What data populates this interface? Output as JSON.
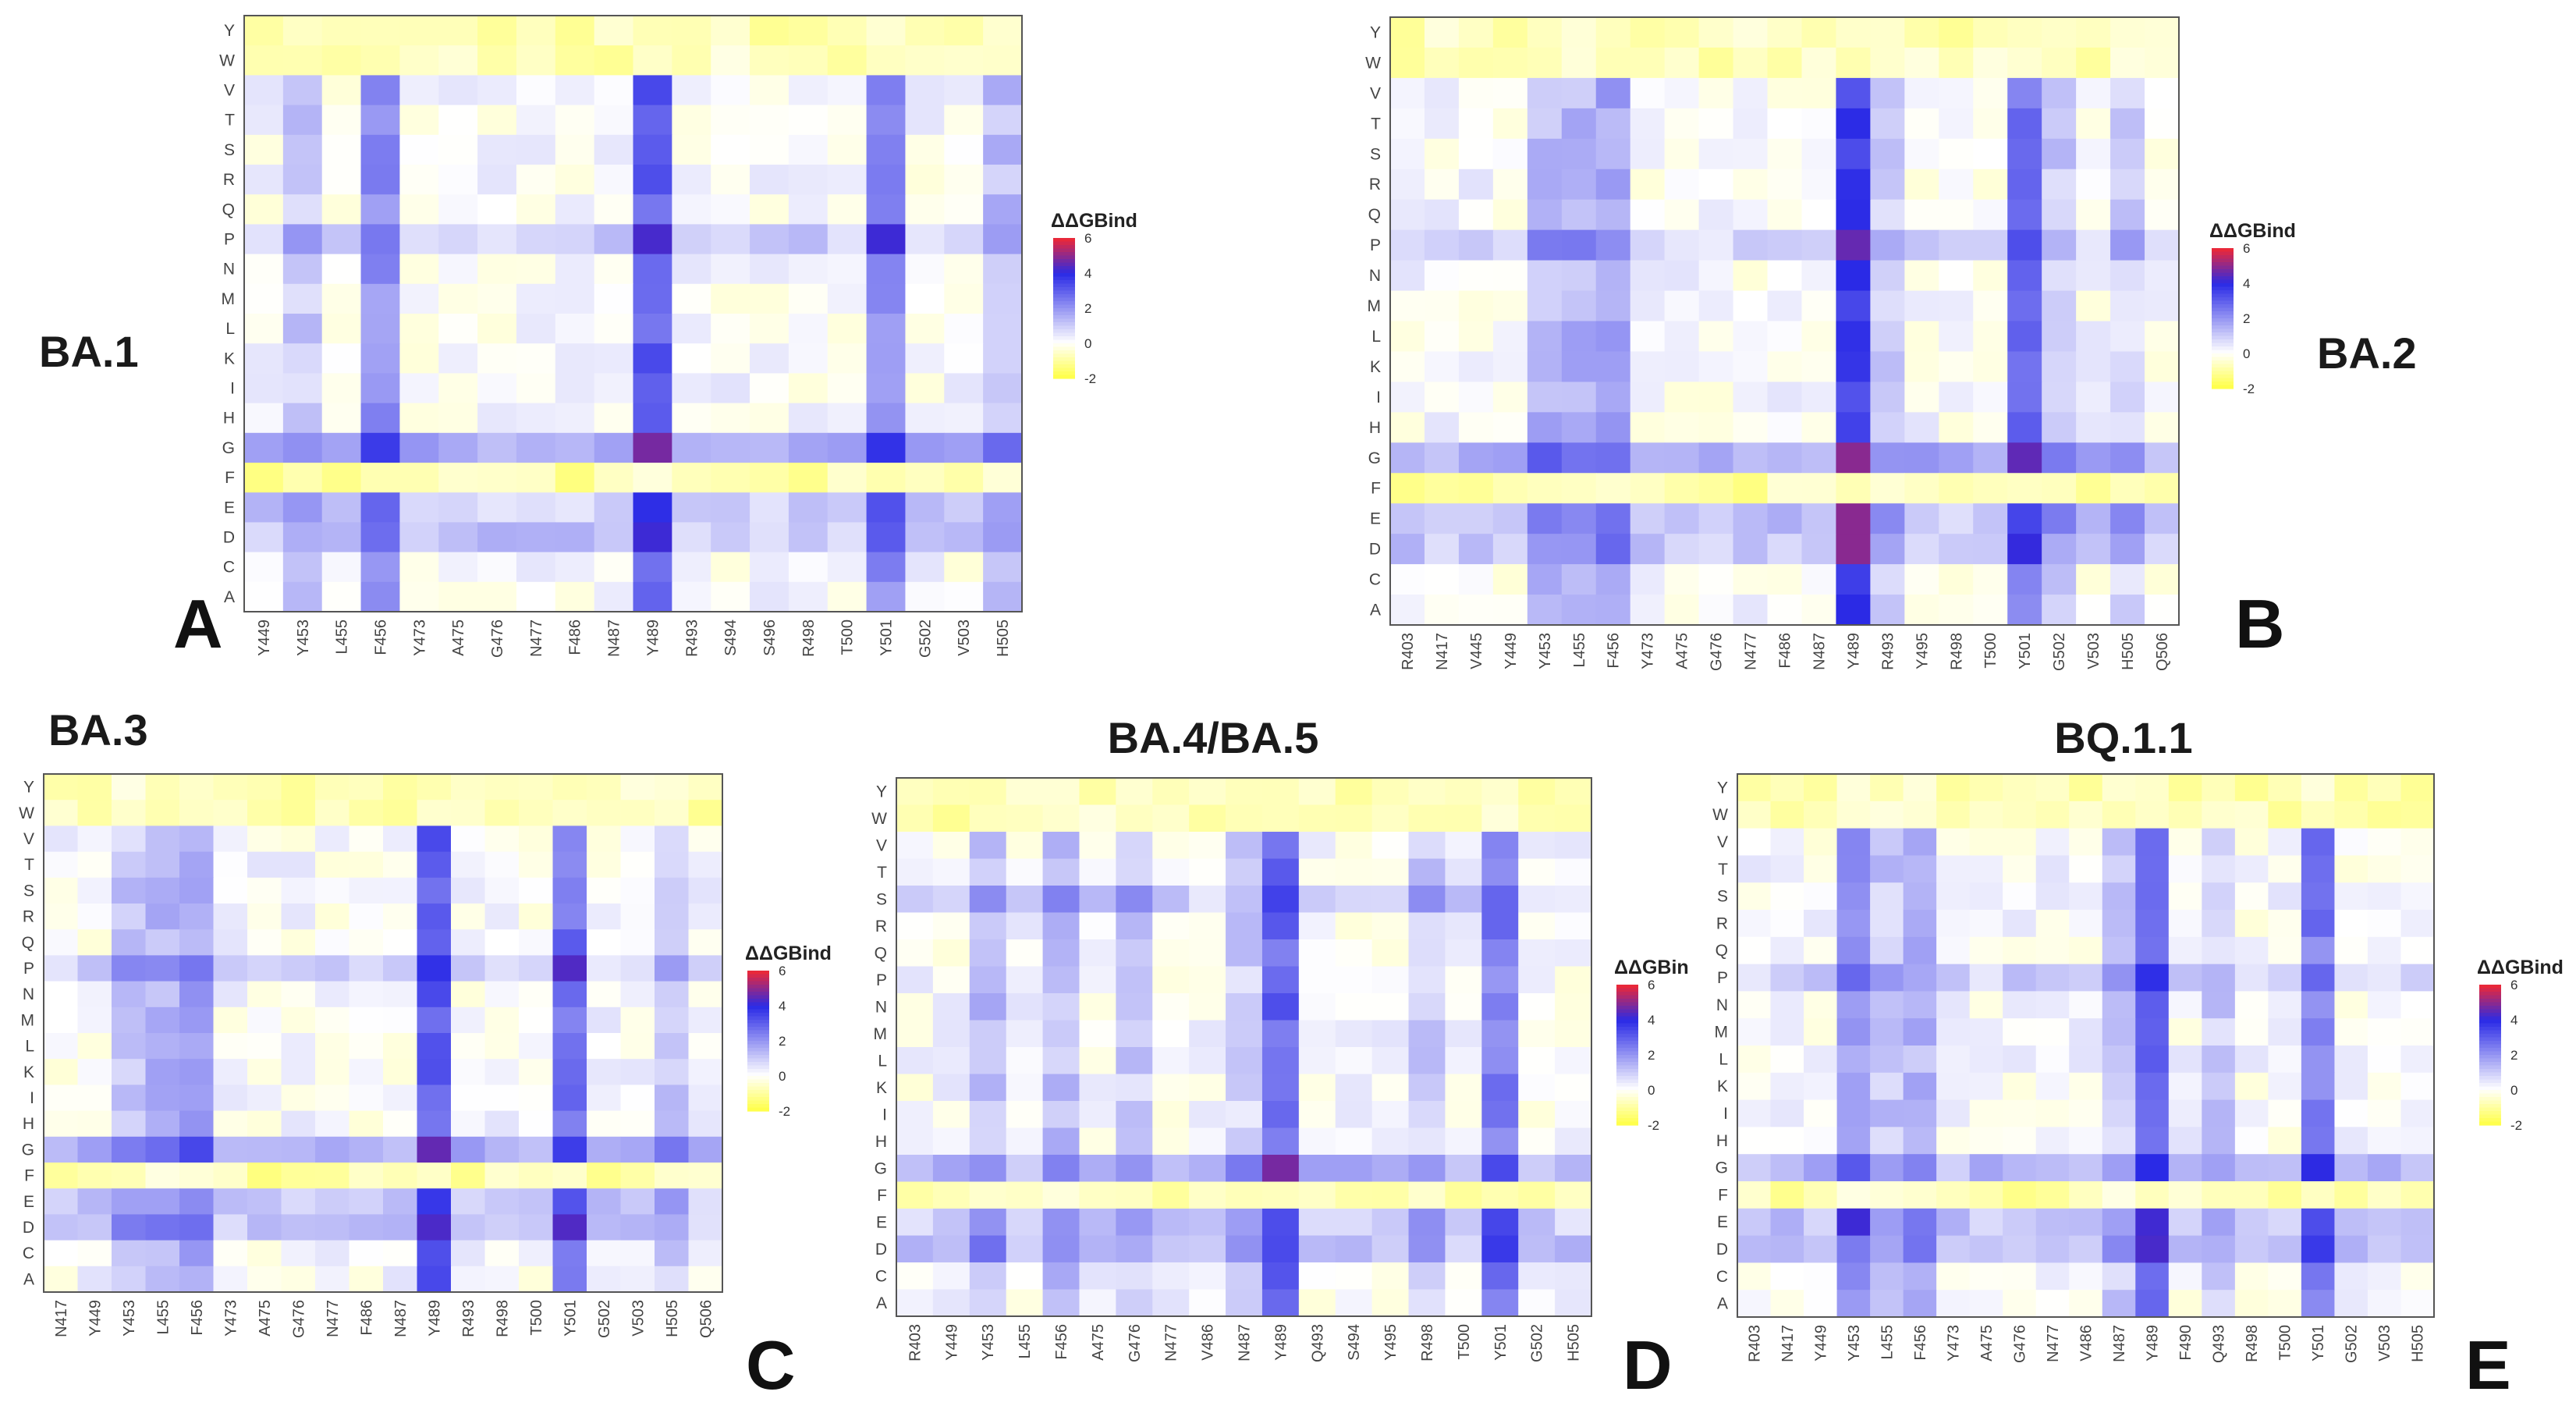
{
  "chart_data": [
    {
      "type": "heatmap",
      "panel": "A",
      "title": "BA.1",
      "legend_title": "ΔΔGBind",
      "legend_ticks": [
        "6",
        "4",
        "2",
        "0",
        "-2"
      ],
      "colorscale": {
        "min": -2,
        "max": 6,
        "stops": [
          "#ffff4d",
          "#ffffff",
          "#2a2ae6",
          "#e8283a"
        ]
      },
      "x": [
        "Y449",
        "Y453",
        "L455",
        "F456",
        "Y473",
        "A475",
        "G476",
        "N477",
        "F486",
        "N487",
        "Y489",
        "R493",
        "S494",
        "S496",
        "R498",
        "T500",
        "Y501",
        "G502",
        "V503",
        "H505"
      ],
      "y": [
        "A",
        "C",
        "D",
        "E",
        "F",
        "G",
        "H",
        "I",
        "K",
        "L",
        "M",
        "N",
        "P",
        "Q",
        "R",
        "S",
        "T",
        "V",
        "W",
        "Y"
      ],
      "hot_columns": {
        "F456": 2.0,
        "Y489": 3.0,
        "Y501": 2.0,
        "Y453": 0.9,
        "H505": 1.2
      },
      "hot_rows": {
        "G": 1.5,
        "D": 1.0,
        "E": 0.9,
        "P": 0.9,
        "F": -1.0,
        "W": -0.8,
        "Y": -0.8
      },
      "peaks": [
        {
          "x": "Y489",
          "y": "G",
          "value": 4.8
        },
        {
          "x": "Y501",
          "y": "P",
          "value": 4.2
        },
        {
          "x": "Y489",
          "y": "D",
          "value": 4.2
        }
      ]
    },
    {
      "type": "heatmap",
      "panel": "B",
      "title": "BA.2",
      "legend_title": "ΔΔGBind",
      "legend_ticks": [
        "6",
        "4",
        "2",
        "0",
        "-2"
      ],
      "colorscale": {
        "min": -2,
        "max": 6,
        "stops": [
          "#ffff4d",
          "#ffffff",
          "#2a2ae6",
          "#e8283a"
        ]
      },
      "x": [
        "R403",
        "N417",
        "V445",
        "Y449",
        "Y453",
        "L455",
        "F456",
        "Y473",
        "A475",
        "G476",
        "N477",
        "F486",
        "N487",
        "Y489",
        "R493",
        "Y495",
        "R498",
        "T500",
        "Y501",
        "G502",
        "V503",
        "H505",
        "Q506"
      ],
      "y": [
        "A",
        "C",
        "D",
        "E",
        "F",
        "G",
        "H",
        "I",
        "K",
        "L",
        "M",
        "N",
        "P",
        "Q",
        "R",
        "S",
        "T",
        "V",
        "W",
        "Y"
      ],
      "hot_columns": {
        "Y489": 3.6,
        "Y501": 2.6,
        "F456": 1.6,
        "L455": 1.3,
        "Y453": 1.3,
        "R493": 0.9,
        "G502": 1.0,
        "H505": 0.8
      },
      "hot_rows": {
        "G": 1.5,
        "D": 1.0,
        "E": 1.0,
        "P": 0.8,
        "F": -1.0,
        "W": -0.8,
        "Y": -0.8
      },
      "peaks": [
        {
          "x": "Y489",
          "y": "D",
          "value": 5.0
        },
        {
          "x": "Y489",
          "y": "E",
          "value": 5.0
        },
        {
          "x": "Y489",
          "y": "G",
          "value": 5.0
        }
      ]
    },
    {
      "type": "heatmap",
      "panel": "C",
      "title": "BA.3",
      "legend_title": "ΔΔGBind",
      "legend_ticks": [
        "6",
        "4",
        "2",
        "0",
        "-2"
      ],
      "colorscale": {
        "min": -2,
        "max": 6,
        "stops": [
          "#ffff4d",
          "#ffffff",
          "#2a2ae6",
          "#e8283a"
        ]
      },
      "x": [
        "N417",
        "Y449",
        "Y453",
        "L455",
        "F456",
        "Y473",
        "A475",
        "G476",
        "N477",
        "F486",
        "N487",
        "Y489",
        "R493",
        "R498",
        "T500",
        "Y501",
        "G502",
        "V503",
        "H505",
        "Q506"
      ],
      "y": [
        "A",
        "C",
        "D",
        "E",
        "F",
        "G",
        "H",
        "I",
        "K",
        "L",
        "M",
        "N",
        "P",
        "Q",
        "R",
        "S",
        "T",
        "V",
        "W",
        "Y"
      ],
      "hot_columns": {
        "Y489": 3.0,
        "Y501": 2.6,
        "F456": 1.6,
        "L455": 1.3,
        "Y453": 1.0,
        "H505": 1.0
      },
      "hot_rows": {
        "G": 1.4,
        "D": 1.0,
        "E": 0.9,
        "P": 0.8,
        "F": -1.0,
        "W": -0.8,
        "Y": -0.8
      },
      "peaks": [
        {
          "x": "Y489",
          "y": "G",
          "value": 4.6
        },
        {
          "x": "Y501",
          "y": "P",
          "value": 4.4
        },
        {
          "x": "Y501",
          "y": "D",
          "value": 4.4
        }
      ]
    },
    {
      "type": "heatmap",
      "panel": "D",
      "title": "BA.4/BA.5",
      "legend_title": "ΔΔGBin",
      "legend_ticks": [
        "6",
        "4",
        "2",
        "0",
        "-2"
      ],
      "colorscale": {
        "min": -2,
        "max": 6,
        "stops": [
          "#ffff4d",
          "#ffffff",
          "#2a2ae6",
          "#e8283a"
        ]
      },
      "x": [
        "R403",
        "Y449",
        "Y453",
        "L455",
        "F456",
        "A475",
        "G476",
        "N477",
        "V486",
        "N487",
        "Y489",
        "Q493",
        "S494",
        "Y495",
        "R498",
        "T500",
        "Y501",
        "G502",
        "H505"
      ],
      "y": [
        "A",
        "C",
        "D",
        "E",
        "F",
        "G",
        "H",
        "I",
        "K",
        "L",
        "M",
        "N",
        "P",
        "Q",
        "R",
        "S",
        "T",
        "V",
        "W",
        "Y"
      ],
      "hot_columns": {
        "Y489": 2.8,
        "Y501": 2.4,
        "F456": 1.2,
        "Y453": 1.2,
        "G476": 0.9,
        "R498": 0.9,
        "N487": 0.8
      },
      "hot_rows": {
        "G": 1.3,
        "D": 1.0,
        "E": 0.9,
        "S": 0.8,
        "F": -0.9,
        "W": -0.8,
        "Y": -0.7
      },
      "peaks": [
        {
          "x": "Y489",
          "y": "G",
          "value": 4.8
        }
      ]
    },
    {
      "type": "heatmap",
      "panel": "E",
      "title": "BQ.1.1",
      "legend_title": "ΔΔGBind",
      "legend_ticks": [
        "6",
        "4",
        "2",
        "0",
        "-2"
      ],
      "colorscale": {
        "min": -2,
        "max": 6,
        "stops": [
          "#ffff4d",
          "#ffffff",
          "#2a2ae6",
          "#e8283a"
        ]
      },
      "x": [
        "R403",
        "N417",
        "Y449",
        "Y453",
        "L455",
        "F456",
        "Y473",
        "A475",
        "G476",
        "N477",
        "V486",
        "N487",
        "Y489",
        "F490",
        "Q493",
        "R498",
        "T500",
        "Y501",
        "G502",
        "V503",
        "H505"
      ],
      "y": [
        "A",
        "C",
        "D",
        "E",
        "F",
        "G",
        "H",
        "I",
        "K",
        "L",
        "M",
        "N",
        "P",
        "Q",
        "R",
        "S",
        "T",
        "V",
        "W",
        "Y"
      ],
      "hot_columns": {
        "Y489": 3.0,
        "Y501": 2.4,
        "Y453": 1.8,
        "F456": 1.3,
        "L455": 1.0,
        "N487": 0.9,
        "Q493": 0.9
      },
      "hot_rows": {
        "G": 1.3,
        "D": 1.0,
        "E": 1.0,
        "P": 0.8,
        "F": -0.9,
        "W": -0.8,
        "Y": -0.8
      },
      "peaks": [
        {
          "x": "Y453",
          "y": "E",
          "value": 4.2
        },
        {
          "x": "Y489",
          "y": "G",
          "value": 4.0
        }
      ]
    }
  ]
}
